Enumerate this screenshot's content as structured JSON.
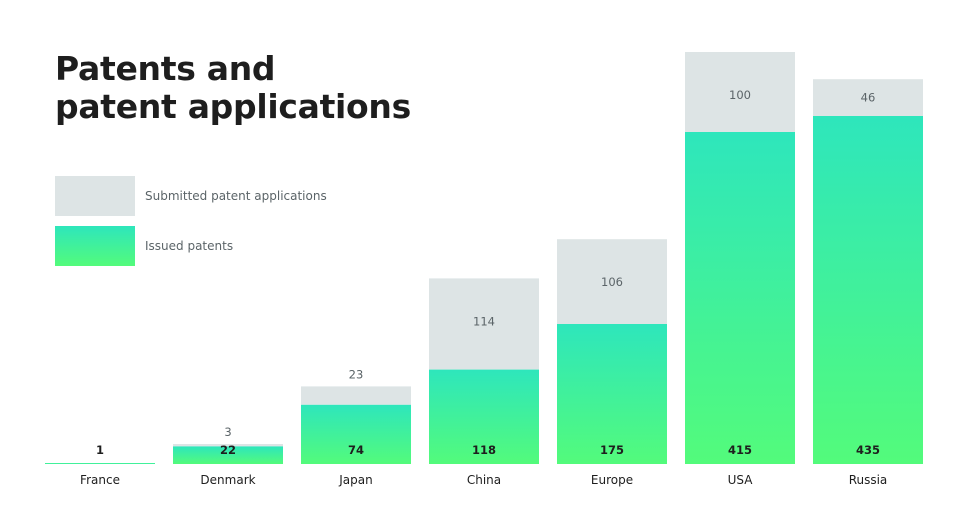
{
  "colors": {
    "submitted": "#dde4e5",
    "issued_top": "#2ee6bc",
    "issued_bottom": "#53fb7b"
  },
  "chart_data": {
    "type": "bar",
    "stacked": true,
    "title": "Patents and patent applications",
    "title_lines": [
      "Patents and",
      "patent applications"
    ],
    "categories": [
      "France",
      "Denmark",
      "Japan",
      "China",
      "Europe",
      "USA",
      "Russia"
    ],
    "series": [
      {
        "name": "Issued patents",
        "values": [
          1,
          22,
          74,
          118,
          175,
          415,
          435
        ]
      },
      {
        "name": "Submitted patent applications",
        "values": [
          0,
          3,
          23,
          114,
          106,
          100,
          46
        ]
      }
    ],
    "top_labels": [
      "",
      "3",
      "23",
      "114",
      "106",
      "100",
      "46"
    ],
    "bottom_labels": [
      "1",
      "22",
      "74",
      "118",
      "175",
      "415",
      "435"
    ],
    "legend": [
      {
        "label": "Submitted patent applications",
        "series": "Submitted patent applications"
      },
      {
        "label": "Issued patents",
        "series": "Issued patents"
      }
    ],
    "legend_position": "top-left",
    "grid": false,
    "y_axis_visible": false
  }
}
